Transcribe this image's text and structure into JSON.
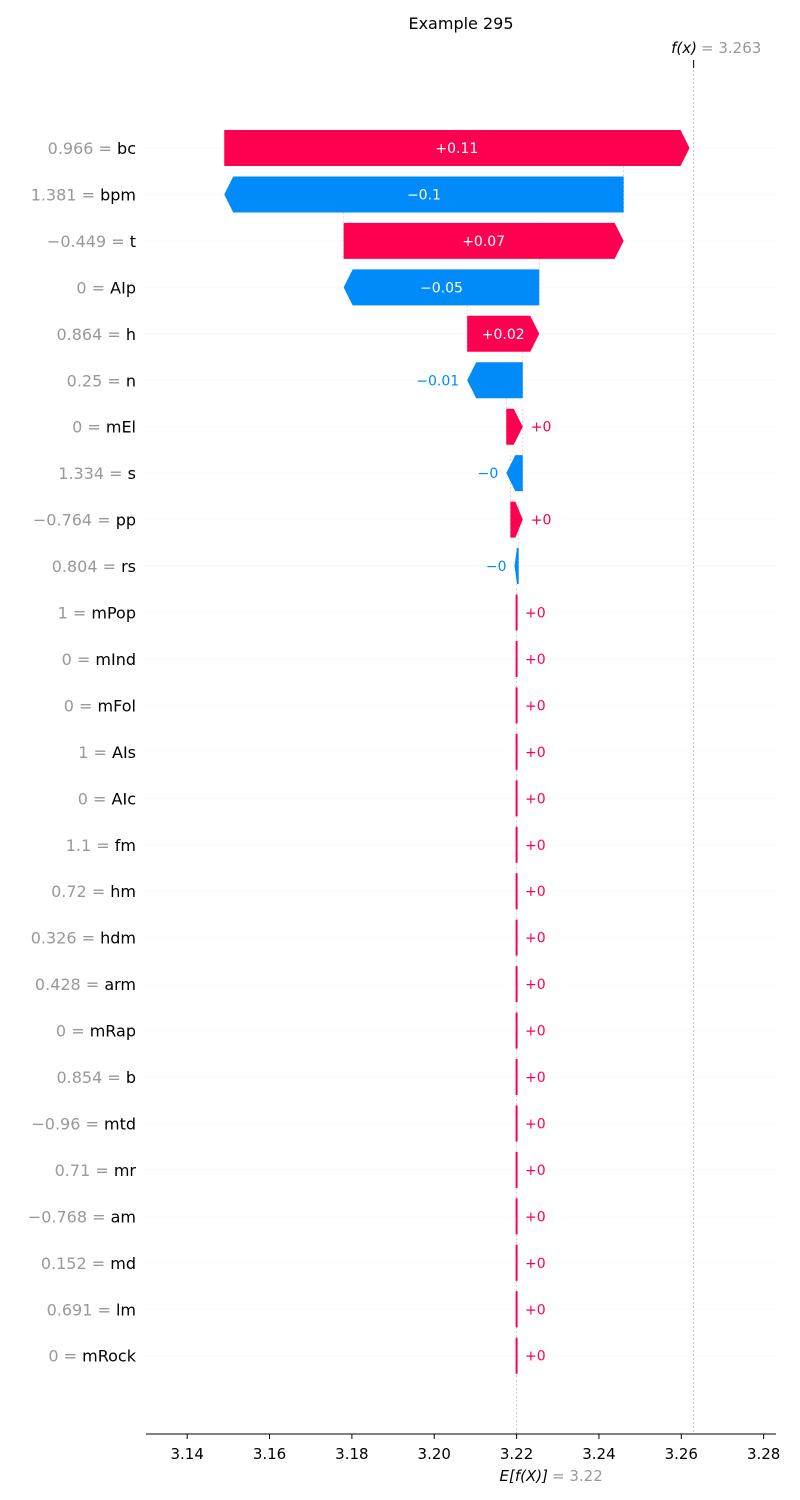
{
  "chart_data": {
    "type": "waterfall",
    "title": "Example 295",
    "fx_label": "f(x)",
    "fx_value": "3.263",
    "ex_label": "E[f(X)]",
    "ex_value": "3.22",
    "base_value": 3.22,
    "final_value": 3.263,
    "xlim": [
      3.13,
      3.283
    ],
    "x_ticks": [
      3.14,
      3.16,
      3.18,
      3.2,
      3.22,
      3.24,
      3.26,
      3.28
    ],
    "x_tick_labels": [
      "3.14",
      "3.16",
      "3.18",
      "3.20",
      "3.22",
      "3.24",
      "3.26",
      "3.28"
    ],
    "colors": {
      "positive": "#ff0051",
      "negative": "#008bfb"
    },
    "features": [
      {
        "value": "0.966",
        "name": "bc",
        "start": 3.149,
        "end": 3.262,
        "label": "+0.11",
        "sign": "pos"
      },
      {
        "value": "1.381",
        "name": "bpm",
        "start": 3.149,
        "end": 3.246,
        "label": "−0.1",
        "sign": "neg"
      },
      {
        "value": "−0.449",
        "name": "t",
        "start": 3.178,
        "end": 3.246,
        "label": "+0.07",
        "sign": "pos"
      },
      {
        "value": "0",
        "name": "AIp",
        "start": 3.178,
        "end": 3.2255,
        "label": "−0.05",
        "sign": "neg"
      },
      {
        "value": "0.864",
        "name": "h",
        "start": 3.208,
        "end": 3.2255,
        "label": "+0.02",
        "sign": "pos"
      },
      {
        "value": "0.25",
        "name": "n",
        "start": 3.208,
        "end": 3.2215,
        "label": "−0.01",
        "sign": "neg"
      },
      {
        "value": "0",
        "name": "mEl",
        "start": 3.2175,
        "end": 3.2215,
        "label": "+0",
        "sign": "pos"
      },
      {
        "value": "1.334",
        "name": "s",
        "start": 3.2175,
        "end": 3.2215,
        "label": "−0",
        "sign": "neg"
      },
      {
        "value": "−0.764",
        "name": "pp",
        "start": 3.2185,
        "end": 3.2215,
        "label": "+0",
        "sign": "pos"
      },
      {
        "value": "0.804",
        "name": "rs",
        "start": 3.2195,
        "end": 3.2205,
        "label": "−0",
        "sign": "neg"
      },
      {
        "value": "1",
        "name": "mPop",
        "start": 3.22,
        "end": 3.2201,
        "label": "+0",
        "sign": "pos"
      },
      {
        "value": "0",
        "name": "mInd",
        "start": 3.22,
        "end": 3.2201,
        "label": "+0",
        "sign": "pos"
      },
      {
        "value": "0",
        "name": "mFol",
        "start": 3.22,
        "end": 3.2201,
        "label": "+0",
        "sign": "pos"
      },
      {
        "value": "1",
        "name": "AIs",
        "start": 3.22,
        "end": 3.2201,
        "label": "+0",
        "sign": "pos"
      },
      {
        "value": "0",
        "name": "AIc",
        "start": 3.22,
        "end": 3.2201,
        "label": "+0",
        "sign": "pos"
      },
      {
        "value": "1.1",
        "name": "fm",
        "start": 3.22,
        "end": 3.2201,
        "label": "+0",
        "sign": "pos"
      },
      {
        "value": "0.72",
        "name": "hm",
        "start": 3.22,
        "end": 3.2201,
        "label": "+0",
        "sign": "pos"
      },
      {
        "value": "0.326",
        "name": "hdm",
        "start": 3.22,
        "end": 3.2201,
        "label": "+0",
        "sign": "pos"
      },
      {
        "value": "0.428",
        "name": "arm",
        "start": 3.22,
        "end": 3.2201,
        "label": "+0",
        "sign": "pos"
      },
      {
        "value": "0",
        "name": "mRap",
        "start": 3.22,
        "end": 3.2201,
        "label": "+0",
        "sign": "pos"
      },
      {
        "value": "0.854",
        "name": "b",
        "start": 3.22,
        "end": 3.2201,
        "label": "+0",
        "sign": "pos"
      },
      {
        "value": "−0.96",
        "name": "mtd",
        "start": 3.22,
        "end": 3.2201,
        "label": "+0",
        "sign": "pos"
      },
      {
        "value": "0.71",
        "name": "mr",
        "start": 3.22,
        "end": 3.2201,
        "label": "+0",
        "sign": "pos"
      },
      {
        "value": "−0.768",
        "name": "am",
        "start": 3.22,
        "end": 3.2201,
        "label": "+0",
        "sign": "pos"
      },
      {
        "value": "0.152",
        "name": "md",
        "start": 3.22,
        "end": 3.2201,
        "label": "+0",
        "sign": "pos"
      },
      {
        "value": "0.691",
        "name": "lm",
        "start": 3.22,
        "end": 3.2201,
        "label": "+0",
        "sign": "pos"
      },
      {
        "value": "0",
        "name": "mRock",
        "start": 3.22,
        "end": 3.2201,
        "label": "+0",
        "sign": "pos"
      }
    ]
  }
}
